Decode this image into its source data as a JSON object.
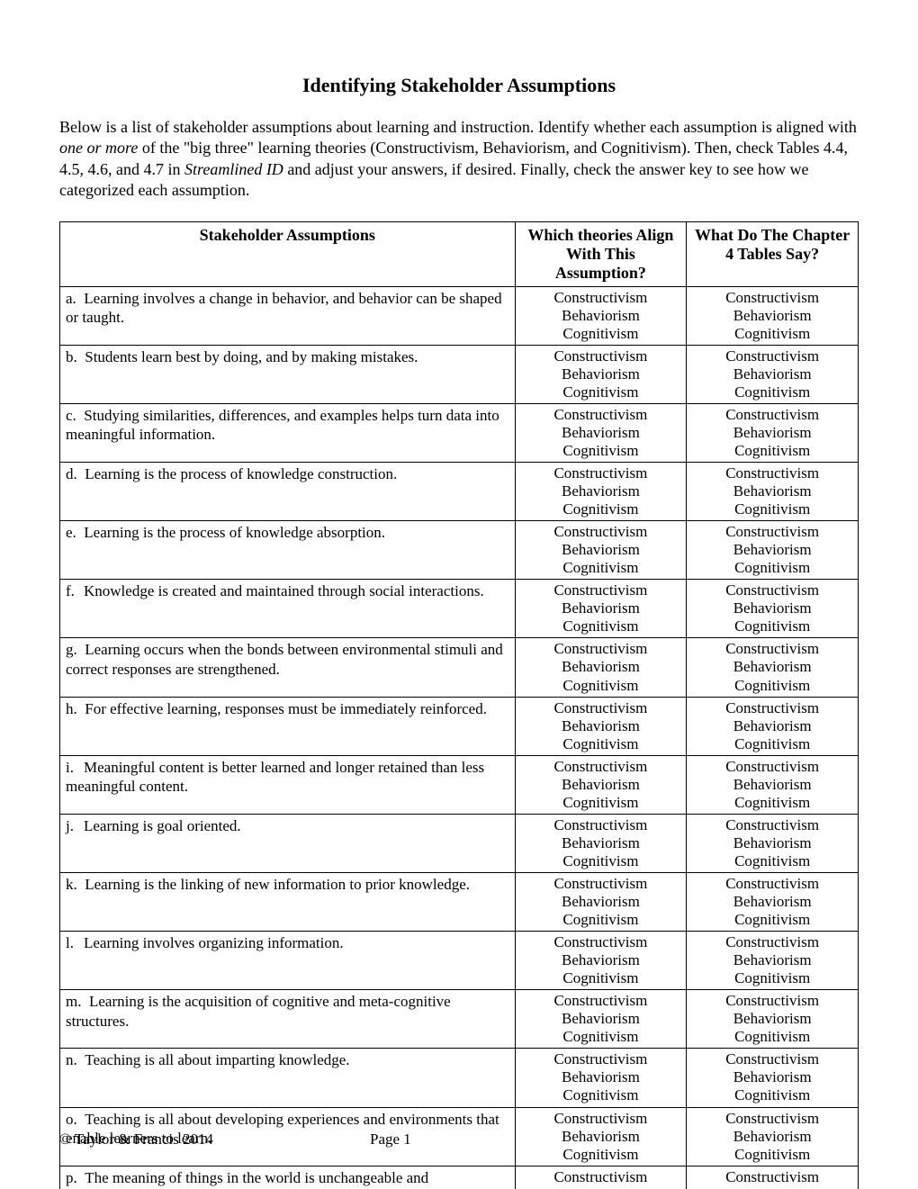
{
  "title": "Identifying Stakeholder Assumptions",
  "intro": {
    "part1": "Below is a list of stakeholder assumptions about learning and instruction. Identify whether each assumption is aligned with ",
    "italic1": "one or more",
    "part2": " of the \"big three\" learning theories (Constructivism, Behaviorism, and Cognitivism). Then, check Tables 4.4, 4.5, 4.6, and 4.7 in ",
    "italic2": "Streamlined ID",
    "part3": " and adjust your answers, if desired. Finally, check the answer key to see how we categorized each assumption."
  },
  "headers": {
    "col1": "Stakeholder Assumptions",
    "col2": "Which theories Align With This Assumption?",
    "col3": "What Do The Chapter 4 Tables Say?"
  },
  "theories": [
    "Constructivism",
    "Behaviorism",
    "Cognitivism"
  ],
  "rows": [
    {
      "letter": "a.",
      "text": "Learning involves a change in behavior, and behavior can be shaped or taught."
    },
    {
      "letter": "b.",
      "text": "Students learn best by doing, and by making mistakes."
    },
    {
      "letter": "c.",
      "text": "Studying similarities, differences, and examples helps turn data into meaningful information."
    },
    {
      "letter": "d.",
      "text": "Learning is the process of knowledge construction."
    },
    {
      "letter": "e.",
      "text": "Learning is the process of knowledge absorption."
    },
    {
      "letter": "f.",
      "text": "Knowledge is created and maintained through social interactions."
    },
    {
      "letter": "g.",
      "text": "Learning occurs when the bonds between environmental stimuli and correct responses are strengthened."
    },
    {
      "letter": "h.",
      "text": "For effective learning, responses must be immediately reinforced."
    },
    {
      "letter": "i.",
      "text": "Meaningful content is better learned and longer retained than less meaningful content."
    },
    {
      "letter": "j.",
      "text": "Learning is goal oriented."
    },
    {
      "letter": "k.",
      "text": "Learning is the linking of new information to prior knowledge."
    },
    {
      "letter": "l.",
      "text": "Learning involves organizing information."
    },
    {
      "letter": "m.",
      "text": "Learning is the acquisition of cognitive and meta-cognitive structures."
    },
    {
      "letter": "n.",
      "text": "Teaching is all about imparting knowledge."
    },
    {
      "letter": "o.",
      "text": "Teaching is all about developing experiences and environments that enable learners to learn."
    },
    {
      "letter": "p.",
      "text": "The meaning of things in the world is unchangeable and",
      "partial": true
    }
  ],
  "footer": {
    "copyright": "© Taylor & Francis 2014",
    "page_label": "Page ",
    "page_num": "1"
  }
}
